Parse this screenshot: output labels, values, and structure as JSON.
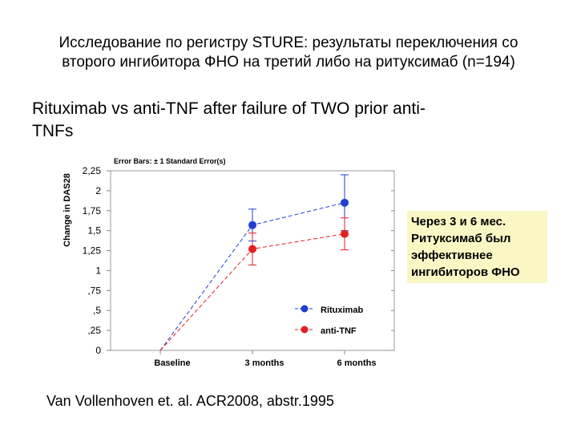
{
  "header": {
    "title_line1": "Исследование по регистру STURE: результаты переключения со",
    "title_line2": "второго ингибитора ФНО на третий либо на ритуксимаб (n=194)",
    "subtitle_line1": "Rituximab vs anti-TNF after failure of TWO prior anti-",
    "subtitle_line2": "TNFs"
  },
  "note": {
    "line1": "Через 3 и 6 мес.",
    "line2": "Ритуксимаб был",
    "line3": "эффективнее",
    "line4": "ингибиторов ФНО"
  },
  "citation": "Van Vollenhoven et. al. ACR2008, abstr.1995",
  "chart_data": {
    "type": "line",
    "caption": "Error Bars: ± 1 Standard Error(s)",
    "ylabel": "Change in DAS28",
    "xlabel": "",
    "categories": [
      "Baseline",
      "3 months",
      "6 months"
    ],
    "ylim": [
      0,
      2.25
    ],
    "yticks": [
      {
        "value": 0,
        "label": "0"
      },
      {
        "value": 0.25,
        "label": ",25"
      },
      {
        "value": 0.5,
        "label": ",5"
      },
      {
        "value": 0.75,
        "label": ",75"
      },
      {
        "value": 1,
        "label": "1"
      },
      {
        "value": 1.25,
        "label": "1,25"
      },
      {
        "value": 1.5,
        "label": "1,5"
      },
      {
        "value": 1.75,
        "label": "1,75"
      },
      {
        "value": 2,
        "label": "2"
      },
      {
        "value": 2.25,
        "label": "2,25"
      }
    ],
    "legend_position": "bottom-right",
    "series": [
      {
        "name": "Rituximab",
        "color": "#1f3fd6",
        "values": [
          0,
          1.57,
          1.85
        ],
        "err": [
          0,
          0.2,
          0.35
        ]
      },
      {
        "name": "anti-TNF",
        "color": "#e02020",
        "values": [
          0,
          1.27,
          1.46
        ],
        "err": [
          0,
          0.2,
          0.2
        ]
      }
    ]
  }
}
